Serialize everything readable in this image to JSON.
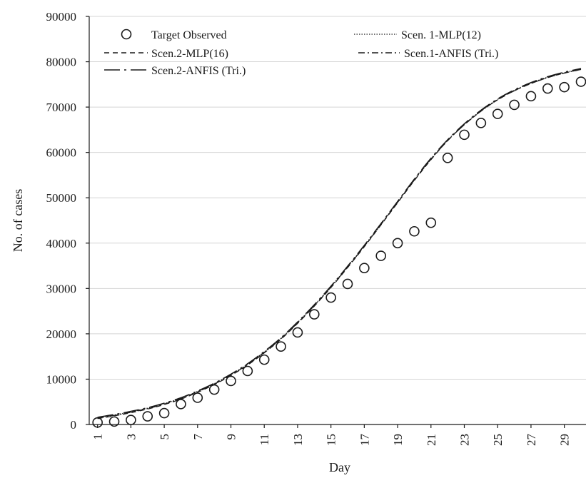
{
  "chart_data": {
    "type": "line",
    "title": "",
    "xlabel": "Day",
    "ylabel": "No. of cases",
    "xlim": [
      0.5,
      30.3
    ],
    "ylim": [
      0,
      90000
    ],
    "x_ticks": [
      1,
      3,
      5,
      7,
      9,
      11,
      13,
      15,
      17,
      19,
      21,
      23,
      25,
      27,
      29
    ],
    "y_ticks": [
      0,
      10000,
      20000,
      30000,
      40000,
      50000,
      60000,
      70000,
      80000,
      90000
    ],
    "grid": true,
    "legend_placement": "top",
    "series": [
      {
        "name": "Target Observed",
        "style": "circle-marker",
        "x": [
          1,
          2,
          3,
          4,
          5,
          6,
          7,
          8,
          9,
          10,
          11,
          12,
          13,
          14,
          15,
          16,
          17,
          18,
          19,
          20,
          21,
          22,
          23,
          24,
          25,
          26,
          27,
          28,
          29,
          30
        ],
        "y": [
          440,
          650,
          1000,
          1800,
          2500,
          4500,
          5900,
          7700,
          9600,
          11800,
          14300,
          17200,
          20300,
          24300,
          28000,
          31000,
          34500,
          37200,
          40000,
          42600,
          44500,
          58800,
          63900,
          66500,
          68500,
          70500,
          72400,
          74100,
          74400,
          75600
        ]
      },
      {
        "name": "Scen. 1-MLP(12)",
        "style": "dotted",
        "x": [
          1,
          2,
          3,
          4,
          5,
          6,
          7,
          8,
          9,
          10,
          11,
          12,
          13,
          14,
          15,
          16,
          17,
          18,
          19,
          20,
          21,
          22,
          23,
          24,
          25,
          26,
          27,
          28,
          29,
          30
        ],
        "y": [
          1500,
          2100,
          2800,
          3600,
          4600,
          5800,
          7300,
          9000,
          11000,
          13300,
          16000,
          19000,
          22500,
          26300,
          30400,
          34800,
          39400,
          44200,
          49100,
          54000,
          58600,
          62700,
          66200,
          69200,
          71700,
          73700,
          75300,
          76600,
          77600,
          78400
        ]
      },
      {
        "name": "Scen.2-MLP(16)",
        "style": "dashed",
        "x": [
          1,
          2,
          3,
          4,
          5,
          6,
          7,
          8,
          9,
          10,
          11,
          12,
          13,
          14,
          15,
          16,
          17,
          18,
          19,
          20,
          21,
          22,
          23,
          24,
          25,
          26,
          27,
          28,
          29,
          30
        ],
        "y": [
          1300,
          1900,
          2600,
          3400,
          4400,
          5600,
          7100,
          8800,
          10800,
          13100,
          15800,
          18800,
          22300,
          26100,
          30200,
          34600,
          39200,
          44000,
          48900,
          53800,
          58400,
          62600,
          66100,
          69100,
          71600,
          73600,
          75200,
          76500,
          77500,
          78300
        ]
      },
      {
        "name": "Scen.1-ANFIS (Tri.)",
        "style": "dash-dot",
        "x": [
          1,
          2,
          3,
          4,
          5,
          6,
          7,
          8,
          9,
          10,
          11,
          12,
          13,
          14,
          15,
          16,
          17,
          18,
          19,
          20,
          21,
          22,
          23,
          24,
          25,
          26,
          27,
          28,
          29,
          30
        ],
        "y": [
          1400,
          2000,
          2700,
          3500,
          4500,
          5700,
          7200,
          8900,
          10900,
          13200,
          15900,
          18900,
          22400,
          26200,
          30300,
          34700,
          39300,
          44100,
          49000,
          53900,
          58500,
          62600,
          66100,
          69100,
          71600,
          73600,
          75200,
          76500,
          77500,
          78300
        ]
      },
      {
        "name": "Scen.2-ANFIS (Tri.)",
        "style": "long-dash-dot",
        "x": [
          1,
          2,
          3,
          4,
          5,
          6,
          7,
          8,
          9,
          10,
          11,
          12,
          13,
          14,
          15,
          16,
          17,
          18,
          19,
          20,
          21,
          22,
          23,
          24,
          25,
          26,
          27,
          28,
          29,
          30
        ],
        "y": [
          1600,
          2200,
          2900,
          3700,
          4700,
          5900,
          7400,
          9100,
          11100,
          13400,
          16100,
          19100,
          22600,
          26400,
          30500,
          34900,
          39500,
          44300,
          49200,
          54100,
          58700,
          62800,
          66300,
          69300,
          71800,
          73800,
          75400,
          76700,
          77700,
          78500
        ]
      }
    ]
  },
  "colors": {
    "line": "#1a1a1a",
    "grid": "#d4d4d4",
    "background": "#ffffff"
  }
}
